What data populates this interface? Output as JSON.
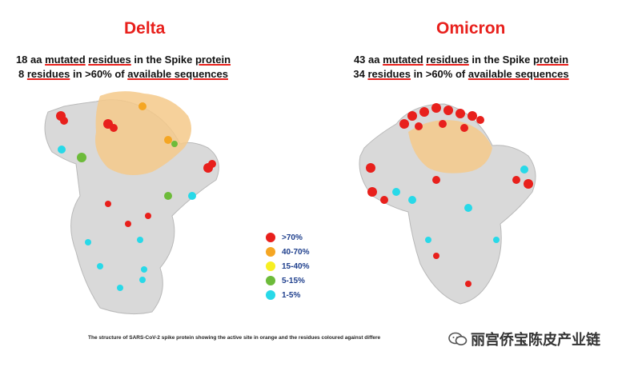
{
  "delta": {
    "title": "Delta",
    "line1": {
      "a": "18 aa ",
      "b": "mutated",
      "c": " ",
      "d": "residues",
      "e": " in the Spike ",
      "f": "protein"
    },
    "line2": {
      "a": "8 ",
      "b": "residues",
      "c": " in >60% of ",
      "d": "available sequences"
    }
  },
  "omicron": {
    "title": "Omicron",
    "line1": {
      "a": "43 aa ",
      "b": "mutated",
      "c": " ",
      "d": "residues",
      "e": " in the Spike ",
      "f": "protein"
    },
    "line2": {
      "a": "34 ",
      "b": "residues",
      "c": " in >60% of ",
      "d": "available sequences"
    }
  },
  "legend": [
    {
      "label": ">70%",
      "color": "#e8201c"
    },
    {
      "label": "40-70%",
      "color": "#f5a623"
    },
    {
      "label": "15-40%",
      "color": "#f7ef22"
    },
    {
      "label": "5-15%",
      "color": "#6dbb3a"
    },
    {
      "label": "1-5%",
      "color": "#28d9e8"
    }
  ],
  "caption": "The structure of SARS-CoV-2 spike protein showing the active site in orange and the residues coloured against differe",
  "watermark": "丽宫侨宝陈皮产业链",
  "icon_names": {
    "watermark_logo": "wechat-icon"
  }
}
